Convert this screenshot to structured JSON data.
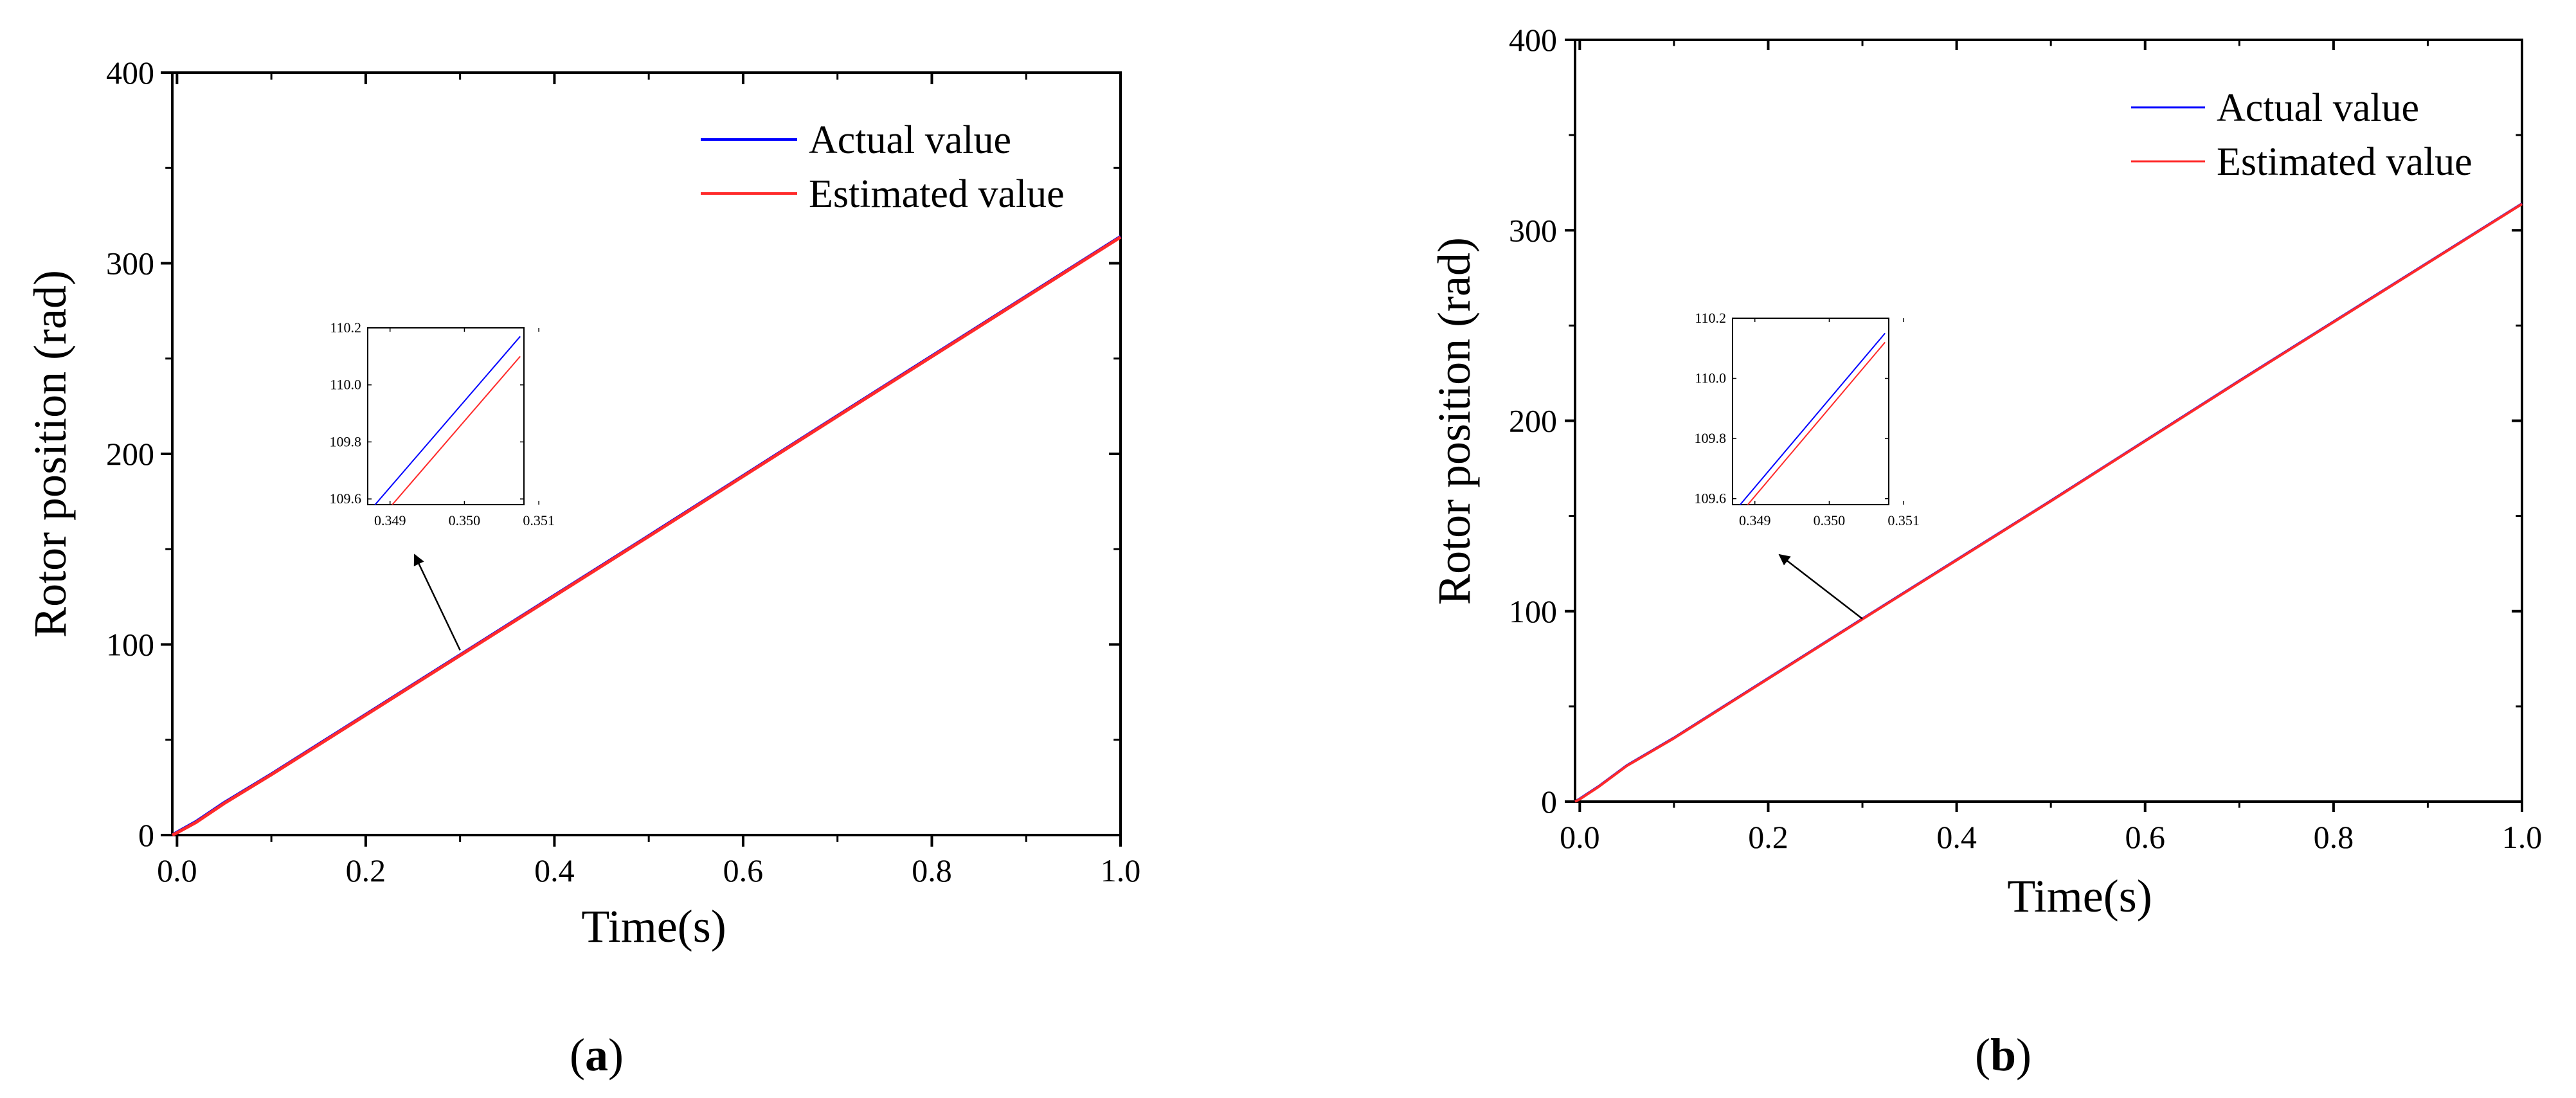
{
  "colors": {
    "actual": "#0000ff",
    "estimated": "#ff2a2a",
    "axis": "#000000",
    "arrow": "#000000"
  },
  "chart_data": [
    {
      "type": "line",
      "caption_letter": "a",
      "caption_open": "(",
      "caption_close": ")",
      "xlabel": "Time(s)",
      "ylabel": "Rotor position (rad)",
      "xlim": [
        -0.005,
        1.0
      ],
      "ylim": [
        0,
        400
      ],
      "xticks": [
        0.0,
        0.2,
        0.4,
        0.6,
        0.8,
        1.0
      ],
      "xtick_labels": [
        "0.0",
        "0.2",
        "0.4",
        "0.6",
        "0.8",
        "1.0"
      ],
      "yticks": [
        0,
        100,
        200,
        300,
        400
      ],
      "ytick_labels": [
        "0",
        "100",
        "200",
        "300",
        "400"
      ],
      "legend": [
        "Actual value",
        "Estimated value"
      ],
      "series": [
        {
          "name": "Actual value",
          "x": [
            -0.005,
            0.0,
            0.02,
            0.05,
            0.1,
            0.3,
            0.5,
            0.7,
            1.0
          ],
          "y": [
            0,
            1.5,
            7,
            17,
            32,
            94.5,
            157,
            220,
            314
          ]
        },
        {
          "name": "Estimated value",
          "x": [
            -0.005,
            0.0,
            0.02,
            0.05,
            0.1,
            0.3,
            0.5,
            0.7,
            1.0
          ],
          "y": [
            0,
            1.2,
            6.6,
            16.6,
            31.7,
            94.2,
            156.7,
            219.7,
            313.7
          ]
        }
      ],
      "inset": {
        "xlim": [
          0.3487,
          0.3508
        ],
        "ylim": [
          109.58,
          110.2
        ],
        "xticks": [
          0.349,
          0.35,
          0.351
        ],
        "xtick_labels": [
          "0.349",
          "0.350",
          "0.351"
        ],
        "yticks": [
          109.6,
          109.8,
          110.0,
          110.2
        ],
        "ytick_labels": [
          "109.6",
          "109.8",
          "110.0",
          "110.2"
        ],
        "series": [
          {
            "name": "Actual value",
            "x": [
              0.3487,
              0.35075
            ],
            "y": [
              109.55,
              110.17
            ]
          },
          {
            "name": "Estimated value",
            "x": [
              0.3487,
              0.35075
            ],
            "y": [
              109.48,
              110.1
            ]
          }
        ],
        "arrow_from": {
          "x": 0.3,
          "y": 97
        }
      }
    },
    {
      "type": "line",
      "caption_letter": "b",
      "caption_open": "(",
      "caption_close": ")",
      "xlabel": "Time(s)",
      "ylabel": "Rotor position (rad)",
      "xlim": [
        -0.005,
        1.0
      ],
      "ylim": [
        0,
        400
      ],
      "xticks": [
        0.0,
        0.2,
        0.4,
        0.6,
        0.8,
        1.0
      ],
      "xtick_labels": [
        "0.0",
        "0.2",
        "0.4",
        "0.6",
        "0.8",
        "1.0"
      ],
      "yticks": [
        0,
        100,
        200,
        300,
        400
      ],
      "ytick_labels": [
        "0",
        "100",
        "200",
        "300",
        "400"
      ],
      "legend": [
        "Actual value",
        "Estimated value"
      ],
      "series": [
        {
          "name": "Actual value",
          "x": [
            -0.005,
            0.0,
            0.02,
            0.05,
            0.1,
            0.3,
            0.5,
            0.7,
            1.0
          ],
          "y": [
            0,
            1.5,
            8,
            19,
            33.5,
            96,
            158,
            221,
            314
          ]
        },
        {
          "name": "Estimated value",
          "x": [
            -0.005,
            0.0,
            0.02,
            0.05,
            0.1,
            0.3,
            0.5,
            0.7,
            1.0
          ],
          "y": [
            0,
            1.3,
            7.8,
            18.8,
            33.3,
            95.8,
            157.8,
            220.8,
            313.8
          ]
        }
      ],
      "inset": {
        "xlim": [
          0.3487,
          0.3508
        ],
        "ylim": [
          109.58,
          110.2
        ],
        "xticks": [
          0.349,
          0.35,
          0.351
        ],
        "xtick_labels": [
          "0.349",
          "0.350",
          "0.351"
        ],
        "yticks": [
          109.6,
          109.8,
          110.0,
          110.2
        ],
        "ytick_labels": [
          "109.6",
          "109.8",
          "110.0",
          "110.2"
        ],
        "series": [
          {
            "name": "Actual value",
            "x": [
              0.3487,
              0.35075
            ],
            "y": [
              109.55,
              110.15
            ]
          },
          {
            "name": "Estimated value",
            "x": [
              0.3487,
              0.35075
            ],
            "y": [
              109.52,
              110.12
            ]
          }
        ],
        "arrow_from": {
          "x": 0.3,
          "y": 96
        }
      }
    }
  ]
}
